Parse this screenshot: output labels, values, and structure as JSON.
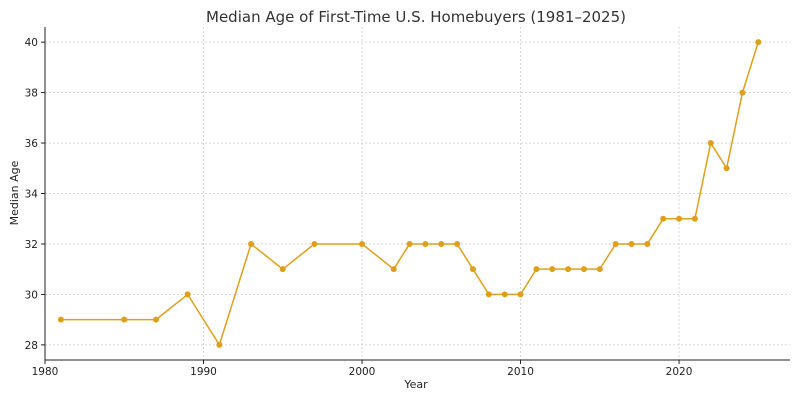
{
  "chart_data": {
    "type": "line",
    "title": "Median Age of First-Time U.S. Homebuyers (1981–2025)",
    "xlabel": "Year",
    "ylabel": "Median Age",
    "xlim": [
      1980,
      2027
    ],
    "ylim": [
      27.4,
      40.6
    ],
    "xticks": [
      1980,
      1990,
      2000,
      2010,
      2020
    ],
    "yticks": [
      28,
      30,
      32,
      34,
      36,
      38,
      40
    ],
    "grid": true,
    "series": [
      {
        "color": "#e09f1a",
        "points": [
          [
            1981,
            29
          ],
          [
            1985,
            29
          ],
          [
            1987,
            29
          ],
          [
            1989,
            30
          ],
          [
            1991,
            28
          ],
          [
            1993,
            32
          ],
          [
            1995,
            31
          ],
          [
            1997,
            32
          ],
          [
            2000,
            32
          ],
          [
            2002,
            31
          ],
          [
            2003,
            32
          ],
          [
            2004,
            32
          ],
          [
            2005,
            32
          ],
          [
            2006,
            32
          ],
          [
            2007,
            31
          ],
          [
            2008,
            30
          ],
          [
            2009,
            30
          ],
          [
            2010,
            30
          ],
          [
            2011,
            31
          ],
          [
            2012,
            31
          ],
          [
            2013,
            31
          ],
          [
            2014,
            31
          ],
          [
            2015,
            31
          ],
          [
            2016,
            32
          ],
          [
            2017,
            32
          ],
          [
            2018,
            32
          ],
          [
            2019,
            33
          ],
          [
            2020,
            33
          ],
          [
            2021,
            33
          ],
          [
            2022,
            36
          ],
          [
            2023,
            35
          ],
          [
            2024,
            38
          ],
          [
            2025,
            40
          ]
        ]
      }
    ]
  }
}
